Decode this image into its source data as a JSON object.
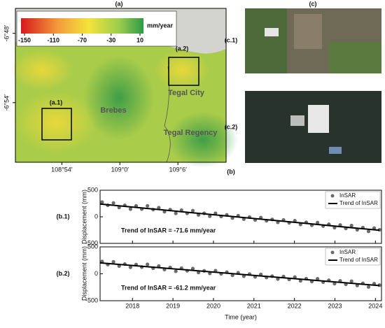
{
  "panels": {
    "a": "(a)",
    "b": "(b)",
    "c": "(c)"
  },
  "map": {
    "colorbar": {
      "unit": "mm/year",
      "clim": [
        -150,
        10
      ],
      "ticks": [
        -150,
        -110,
        -70,
        -30,
        10
      ]
    },
    "xlim": [
      108.82,
      109.183
    ],
    "ylim": [
      -6.986,
      -6.764
    ],
    "xticks": [
      {
        "value": 108.9,
        "label": "108°54′"
      },
      {
        "value": 109.0,
        "label": "109°0′"
      },
      {
        "value": 109.1,
        "label": "109°6′"
      }
    ],
    "yticks": [
      {
        "value": -6.8,
        "label": "-6°48′"
      },
      {
        "value": -6.9,
        "label": "-6°54′"
      }
    ],
    "places": [
      "Brebes",
      "Tegal City",
      "Tegal Regency"
    ],
    "insets": [
      "(a.1)",
      "(a.2)"
    ]
  },
  "photos": [
    "(c.1)",
    "(c.2)"
  ],
  "chart_data": [
    {
      "type": "scatter",
      "panel": "(b.1)",
      "ylabel": "Displacement (mm)",
      "annotation": "Trend of InSAR = -71.6 mm/year",
      "xlim": [
        2017.2,
        2024.15
      ],
      "xticks": [
        2018,
        2019,
        2020,
        2021,
        2022,
        2023,
        2024
      ],
      "ylim": [
        -500,
        500
      ],
      "yticks": [
        -500,
        0,
        500
      ],
      "legend": "upper right",
      "series": [
        {
          "name": "InSAR",
          "color": "#6b6b6b",
          "x": [
            2017.25,
            2017.39,
            2017.53,
            2017.67,
            2017.81,
            2017.95,
            2018.09,
            2018.23,
            2018.37,
            2018.51,
            2018.65,
            2018.79,
            2018.93,
            2019.07,
            2019.21,
            2019.35,
            2019.49,
            2019.63,
            2019.77,
            2019.91,
            2020.05,
            2020.19,
            2020.33,
            2020.47,
            2020.61,
            2020.75,
            2020.89,
            2021.03,
            2021.17,
            2021.31,
            2021.45,
            2021.59,
            2021.73,
            2021.87,
            2022.01,
            2022.15,
            2022.29,
            2022.43,
            2022.57,
            2022.71,
            2022.85,
            2022.99,
            2023.13,
            2023.27,
            2023.41,
            2023.55,
            2023.69,
            2023.83,
            2023.97,
            2024.1
          ],
          "values": [
            276,
            216,
            261,
            176,
            216,
            146,
            206,
            146,
            206,
            136,
            171,
            96,
            136,
            66,
            126,
            66,
            116,
            36,
            66,
            11,
            66,
            6,
            36,
            -24,
            21,
            -44,
            -4,
            -59,
            -14,
            -74,
            -49,
            -104,
            -59,
            -114,
            -74,
            -144,
            -104,
            -159,
            -109,
            -174,
            -139,
            -204,
            -154,
            -219,
            -164,
            -244,
            -204,
            -274,
            -214,
            -244
          ]
        },
        {
          "name": "Trend of InSAR",
          "color": "#000000",
          "x": [
            2017.2,
            2024.1
          ],
          "values": [
            240,
            -254
          ]
        }
      ]
    },
    {
      "type": "scatter",
      "panel": "(b.2)",
      "ylabel": "Displacement (mm)",
      "xlabel": "Time (year)",
      "annotation": "Trend of InSAR = -61.2 mm/year",
      "xlim": [
        2017.2,
        2024.15
      ],
      "xticks": [
        2018,
        2019,
        2020,
        2021,
        2022,
        2023,
        2024
      ],
      "ylim": [
        -500,
        500
      ],
      "yticks": [
        -500,
        0,
        500
      ],
      "legend": "upper right",
      "series": [
        {
          "name": "InSAR",
          "color": "#6b6b6b",
          "x": [
            2017.25,
            2017.39,
            2017.53,
            2017.67,
            2017.81,
            2017.95,
            2018.09,
            2018.23,
            2018.37,
            2018.51,
            2018.65,
            2018.79,
            2018.93,
            2019.07,
            2019.21,
            2019.35,
            2019.49,
            2019.63,
            2019.77,
            2019.91,
            2020.05,
            2020.19,
            2020.33,
            2020.47,
            2020.61,
            2020.75,
            2020.89,
            2021.03,
            2021.17,
            2021.31,
            2021.45,
            2021.59,
            2021.73,
            2021.87,
            2022.01,
            2022.15,
            2022.29,
            2022.43,
            2022.57,
            2022.71,
            2022.85,
            2022.99,
            2023.13,
            2023.27,
            2023.41,
            2023.55,
            2023.69,
            2023.83,
            2023.97,
            2024.1
          ],
          "values": [
            230,
            171,
            223,
            144,
            181,
            122,
            173,
            125,
            176,
            103,
            144,
            80,
            117,
            48,
            105,
            56,
            97,
            24,
            55,
            7,
            58,
            -1,
            31,
            -28,
            19,
            -45,
            -4,
            -57,
            -11,
            -69,
            -43,
            -97,
            -50,
            -104,
            -62,
            -131,
            -90,
            -143,
            -92,
            -155,
            -119,
            -183,
            -131,
            -195,
            -138,
            -217,
            -176,
            -244,
            -183,
            -211
          ]
        },
        {
          "name": "Trend of InSAR",
          "color": "#000000",
          "x": [
            2017.2,
            2024.1
          ],
          "values": [
            203,
            -219
          ]
        }
      ]
    }
  ]
}
